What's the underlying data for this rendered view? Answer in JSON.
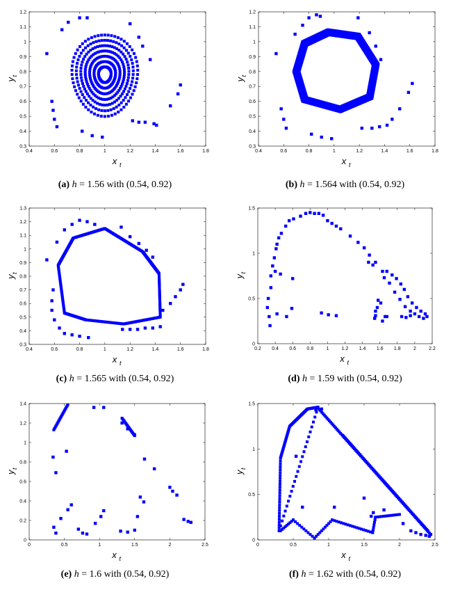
{
  "chart_data": [
    {
      "id": "a",
      "type": "scatter",
      "label": "(a)",
      "h": "1.56",
      "with": "with (0.54, 0.92)",
      "xlabel": "x",
      "xsub": "t",
      "ylabel": "y",
      "ysub": "t",
      "xlim": [
        0.4,
        1.8
      ],
      "ylim": [
        0.3,
        1.2
      ],
      "xticks": [
        "0.4",
        "0.6",
        "0.8",
        "1",
        "1.2",
        "1.4",
        "1.6",
        "1.8"
      ],
      "yticks": [
        "0.3",
        "0.4",
        "0.5",
        "0.6",
        "0.7",
        "0.8",
        "0.9",
        "1",
        "1.1",
        "1.2"
      ],
      "marker_color": "#0000ff",
      "grid": false,
      "points": [
        [
          0.54,
          0.92
        ],
        [
          0.58,
          0.6
        ],
        [
          0.59,
          0.54
        ],
        [
          0.6,
          0.48
        ],
        [
          0.62,
          0.43
        ],
        [
          0.66,
          1.08
        ],
        [
          0.71,
          1.13
        ],
        [
          0.8,
          1.16
        ],
        [
          0.82,
          0.4
        ],
        [
          0.9,
          0.37
        ],
        [
          0.98,
          0.36
        ],
        [
          0.86,
          1.16
        ],
        [
          1.2,
          1.12
        ],
        [
          1.27,
          1.03
        ],
        [
          1.3,
          0.97
        ],
        [
          1.36,
          0.88
        ],
        [
          1.39,
          0.45
        ],
        [
          1.41,
          0.44
        ],
        [
          1.52,
          0.57
        ],
        [
          1.6,
          0.71
        ],
        [
          1.58,
          0.65
        ],
        [
          1.32,
          0.46
        ],
        [
          1.27,
          0.46
        ],
        [
          1.22,
          0.47
        ]
      ]
    },
    {
      "id": "b",
      "type": "scatter",
      "label": "(b)",
      "h": "1.564",
      "with": "with (0.54, 0.92)",
      "xlabel": "x",
      "xsub": "t",
      "ylabel": "y",
      "ysub": "t",
      "xlim": [
        0.4,
        1.8
      ],
      "ylim": [
        0.3,
        1.2
      ],
      "xticks": [
        "0.4",
        "0.6",
        "0.8",
        "1",
        "1.2",
        "1.4",
        "1.6",
        "1.8"
      ],
      "yticks": [
        "0.3",
        "0.4",
        "0.5",
        "0.6",
        "0.7",
        "0.8",
        "0.9",
        "1",
        "1.1",
        "1.2"
      ],
      "marker_color": "#0000ff",
      "grid": false,
      "points": [
        [
          0.54,
          0.92
        ],
        [
          0.58,
          0.55
        ],
        [
          0.6,
          0.48
        ],
        [
          0.62,
          0.42
        ],
        [
          0.69,
          1.05
        ],
        [
          0.75,
          1.11
        ],
        [
          0.8,
          1.16
        ],
        [
          0.86,
          1.18
        ],
        [
          0.89,
          1.17
        ],
        [
          0.82,
          0.38
        ],
        [
          0.9,
          0.36
        ],
        [
          0.98,
          0.35
        ],
        [
          1.19,
          1.16
        ],
        [
          1.28,
          1.06
        ],
        [
          1.33,
          0.97
        ],
        [
          1.37,
          0.88
        ],
        [
          1.42,
          0.44
        ],
        [
          1.46,
          0.48
        ],
        [
          1.52,
          0.55
        ],
        [
          1.59,
          0.66
        ],
        [
          1.62,
          0.72
        ],
        [
          1.22,
          0.42
        ],
        [
          1.3,
          0.42
        ],
        [
          1.36,
          0.43
        ]
      ]
    },
    {
      "id": "c",
      "type": "scatter",
      "label": "(c)",
      "h": "1.565",
      "with": "with (0.54, 0.92)",
      "xlabel": "x",
      "xsub": "t",
      "ylabel": "y",
      "ysub": "t",
      "xlim": [
        0.4,
        1.8
      ],
      "ylim": [
        0.3,
        1.3
      ],
      "xticks": [
        "0.4",
        "0.6",
        "0.8",
        "1",
        "1.2",
        "1.4",
        "1.6",
        "1.8"
      ],
      "yticks": [
        "0.3",
        "0.4",
        "0.5",
        "0.6",
        "0.7",
        "0.8",
        "0.9",
        "1",
        "1.1",
        "1.2",
        "1.3"
      ],
      "marker_color": "#0000ff",
      "grid": false,
      "points": [
        [
          0.54,
          0.92
        ],
        [
          0.59,
          0.7
        ],
        [
          0.58,
          0.62
        ],
        [
          0.58,
          0.55
        ],
        [
          0.6,
          0.48
        ],
        [
          0.64,
          0.42
        ],
        [
          0.68,
          0.38
        ],
        [
          0.74,
          0.37
        ],
        [
          0.8,
          0.36
        ],
        [
          0.87,
          0.35
        ],
        [
          0.62,
          1.05
        ],
        [
          0.68,
          1.14
        ],
        [
          0.74,
          1.18
        ],
        [
          0.8,
          1.21
        ],
        [
          0.86,
          1.2
        ],
        [
          0.92,
          1.18
        ],
        [
          1.13,
          1.16
        ],
        [
          1.2,
          1.09
        ],
        [
          1.27,
          1.04
        ],
        [
          1.33,
          0.99
        ],
        [
          1.38,
          0.94
        ],
        [
          1.46,
          0.55
        ],
        [
          1.52,
          0.6
        ],
        [
          1.56,
          0.65
        ],
        [
          1.6,
          0.7
        ],
        [
          1.62,
          0.74
        ],
        [
          1.14,
          0.41
        ],
        [
          1.2,
          0.41
        ],
        [
          1.26,
          0.41
        ],
        [
          1.32,
          0.42
        ],
        [
          1.38,
          0.42
        ],
        [
          1.44,
          0.43
        ]
      ]
    },
    {
      "id": "d",
      "type": "scatter",
      "label": "(d)",
      "h": "1.59",
      "with": "with (0.54, 0.92)",
      "xlabel": "x",
      "xsub": "t",
      "ylabel": "y",
      "ysub": "t",
      "xlim": [
        0.2,
        2.2
      ],
      "ylim": [
        0,
        1.5
      ],
      "xticks": [
        "0.2",
        "0.4",
        "0.6",
        "0.8",
        "1",
        "1.2",
        "1.4",
        "1.6",
        "1.8",
        "2",
        "2.2"
      ],
      "yticks": [
        "0",
        "0.5",
        "1",
        "1.5"
      ],
      "marker_color": "#0000ff",
      "grid": false,
      "points": [
        [
          0.32,
          0.5
        ],
        [
          0.31,
          0.4
        ],
        [
          0.33,
          0.3
        ],
        [
          0.34,
          0.2
        ],
        [
          0.35,
          0.62
        ],
        [
          0.35,
          0.75
        ],
        [
          0.37,
          0.86
        ],
        [
          0.39,
          0.95
        ],
        [
          0.41,
          1.05
        ],
        [
          0.42,
          1.1
        ],
        [
          0.44,
          1.17
        ],
        [
          0.47,
          1.22
        ],
        [
          0.52,
          1.3
        ],
        [
          0.56,
          1.36
        ],
        [
          0.61,
          1.38
        ],
        [
          0.69,
          1.41
        ],
        [
          0.75,
          1.44
        ],
        [
          0.8,
          1.45
        ],
        [
          0.85,
          1.44
        ],
        [
          0.9,
          1.44
        ],
        [
          0.95,
          1.42
        ],
        [
          1.0,
          1.36
        ],
        [
          1.05,
          1.33
        ],
        [
          1.1,
          1.3
        ],
        [
          1.15,
          1.27
        ],
        [
          1.26,
          1.19
        ],
        [
          1.35,
          1.12
        ],
        [
          1.42,
          1.06
        ],
        [
          1.48,
          0.98
        ],
        [
          1.55,
          0.9
        ],
        [
          1.63,
          0.8
        ],
        [
          1.65,
          0.73
        ],
        [
          1.71,
          0.67
        ],
        [
          1.77,
          0.57
        ],
        [
          1.83,
          0.49
        ],
        [
          1.89,
          0.41
        ],
        [
          1.95,
          0.36
        ],
        [
          2.0,
          0.33
        ],
        [
          2.05,
          0.3
        ],
        [
          2.1,
          0.28
        ],
        [
          2.14,
          0.3
        ],
        [
          2.12,
          0.33
        ],
        [
          2.07,
          0.36
        ],
        [
          2.02,
          0.4
        ],
        [
          1.97,
          0.45
        ],
        [
          1.92,
          0.52
        ],
        [
          1.88,
          0.6
        ],
        [
          1.84,
          0.66
        ],
        [
          1.79,
          0.72
        ],
        [
          1.74,
          0.76
        ],
        [
          1.68,
          0.8
        ],
        [
          1.52,
          0.87
        ],
        [
          1.47,
          0.9
        ],
        [
          0.4,
          0.8
        ],
        [
          0.46,
          0.77
        ],
        [
          0.6,
          0.72
        ],
        [
          0.59,
          0.39
        ],
        [
          0.42,
          0.33
        ],
        [
          0.53,
          0.3
        ],
        [
          0.93,
          0.34
        ],
        [
          1.01,
          0.32
        ],
        [
          1.1,
          0.31
        ],
        [
          1.55,
          0.36
        ],
        [
          1.57,
          0.4
        ],
        [
          1.58,
          0.48
        ],
        [
          1.61,
          0.45
        ],
        [
          1.54,
          0.28
        ],
        [
          1.55,
          0.31
        ],
        [
          1.63,
          0.25
        ],
        [
          1.66,
          0.3
        ],
        [
          1.85,
          0.3
        ],
        [
          1.9,
          0.29
        ],
        [
          1.95,
          0.31
        ],
        [
          1.68,
          0.3
        ]
      ]
    },
    {
      "id": "e",
      "type": "scatter",
      "label": "(e)",
      "h": "1.6",
      "with": "with (0.54, 0.92)",
      "xlabel": "x",
      "xsub": "t",
      "ylabel": "y",
      "ysub": "t",
      "xlim": [
        0,
        2.5
      ],
      "ylim": [
        0,
        1.4
      ],
      "xticks": [
        "0",
        "0.5",
        "1",
        "1.5",
        "2",
        "2.5"
      ],
      "yticks": [
        "0",
        "0.2",
        "0.4",
        "0.6",
        "0.8",
        "1",
        "1.2",
        "1.4"
      ],
      "marker_color": "#0000ff",
      "grid": false,
      "points": [
        [
          0.34,
          0.85
        ],
        [
          0.38,
          0.69
        ],
        [
          0.53,
          0.91
        ],
        [
          0.35,
          0.13
        ],
        [
          0.38,
          0.07
        ],
        [
          0.45,
          0.22
        ],
        [
          0.55,
          0.31
        ],
        [
          0.6,
          0.36
        ],
        [
          0.7,
          0.11
        ],
        [
          0.76,
          0.07
        ],
        [
          0.82,
          0.06
        ],
        [
          0.94,
          0.17
        ],
        [
          1.02,
          0.24
        ],
        [
          1.06,
          0.3
        ],
        [
          1.3,
          0.09
        ],
        [
          1.4,
          0.08
        ],
        [
          1.5,
          0.1
        ],
        [
          1.54,
          0.24
        ],
        [
          1.58,
          0.44
        ],
        [
          1.63,
          0.39
        ],
        [
          1.64,
          0.83
        ],
        [
          1.78,
          0.73
        ],
        [
          0.92,
          1.36
        ],
        [
          1.06,
          1.36
        ],
        [
          1.32,
          1.2
        ],
        [
          1.4,
          1.14
        ],
        [
          1.5,
          1.08
        ],
        [
          2.0,
          0.54
        ],
        [
          2.04,
          0.5
        ],
        [
          2.1,
          0.46
        ],
        [
          2.2,
          0.21
        ],
        [
          2.26,
          0.19
        ],
        [
          2.3,
          0.18
        ]
      ]
    },
    {
      "id": "f",
      "type": "scatter",
      "label": "(f)",
      "h": "1.62",
      "with": "with (0.54, 0.92)",
      "xlabel": "x",
      "xsub": "t",
      "ylabel": "y",
      "ysub": "t",
      "xlim": [
        0,
        2.5
      ],
      "ylim": [
        0,
        1.5
      ],
      "xticks": [
        "0",
        "0.5",
        "1",
        "1.5",
        "2",
        "2.5"
      ],
      "yticks": [
        "0",
        "0.5",
        "1",
        "1.5"
      ],
      "marker_color": "#0000ff",
      "grid": false,
      "points": [
        [
          0.54,
          0.92
        ],
        [
          0.63,
          0.36
        ],
        [
          0.82,
          1.43
        ],
        [
          0.9,
          1.44
        ],
        [
          1.08,
          0.36
        ],
        [
          1.5,
          0.46
        ],
        [
          1.6,
          0.26
        ],
        [
          1.63,
          0.3
        ],
        [
          1.78,
          0.33
        ],
        [
          2.05,
          0.18
        ],
        [
          2.16,
          0.1
        ],
        [
          2.23,
          0.08
        ],
        [
          2.3,
          0.06
        ],
        [
          2.37,
          0.05
        ],
        [
          2.42,
          0.04
        ],
        [
          2.44,
          0.06
        ]
      ]
    }
  ],
  "captions": [
    {
      "label": "(a)",
      "h": "1.56",
      "tail": " with (0.54, 0.92)"
    },
    {
      "label": "(b)",
      "h": "1.564",
      "tail": " with (0.54, 0.92)"
    },
    {
      "label": "(c)",
      "h": "1.565",
      "tail": " with (0.54, 0.92)"
    },
    {
      "label": "(d)",
      "h": "1.59",
      "tail": " with (0.54, 0.92)"
    },
    {
      "label": "(e)",
      "h": "1.6",
      "tail": " with (0.54, 0.92)"
    },
    {
      "label": "(f)",
      "h": "1.62",
      "tail": " with (0.54, 0.92)"
    }
  ],
  "h_symbol": "h",
  "eq": " = "
}
